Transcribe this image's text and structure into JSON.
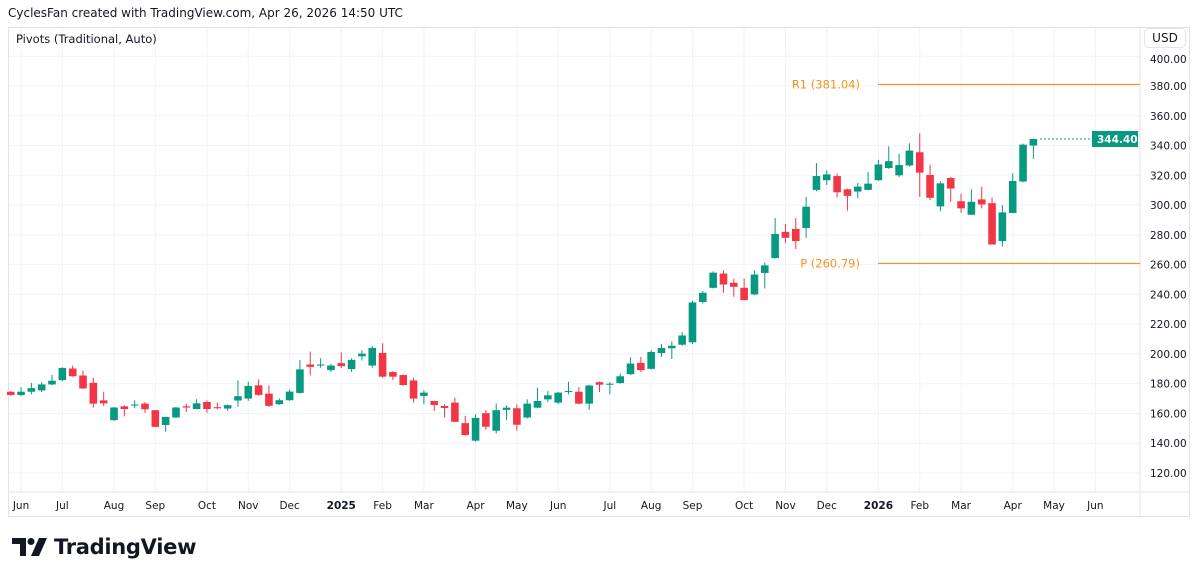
{
  "header": {
    "credit": "CyclesFan created with TradingView.com, Apr 26, 2026 14:50 UTC"
  },
  "indicator": {
    "label": "Pivots (Traditional, Auto)"
  },
  "currency": "USD",
  "branding": {
    "logo_text": "TradingView"
  },
  "colors": {
    "up": "#089981",
    "down": "#f23645",
    "pivot": "#f7931a",
    "grid": "#f0f3fa"
  },
  "chart_data": {
    "type": "candlestick",
    "interval": "weekly",
    "ylim": [
      110,
      400
    ],
    "grid": true,
    "y_ticks": [
      "120.00",
      "140.00",
      "160.00",
      "180.00",
      "200.00",
      "220.00",
      "240.00",
      "260.00",
      "280.00",
      "300.00",
      "320.00",
      "340.00",
      "360.00",
      "380.00",
      "400.00"
    ],
    "x_ticks": [
      {
        "label": "Jun",
        "date": "2024-06-03"
      },
      {
        "label": "Jul",
        "date": "2024-07-01"
      },
      {
        "label": "Aug",
        "date": "2024-08-05"
      },
      {
        "label": "Sep",
        "date": "2024-09-02"
      },
      {
        "label": "Oct",
        "date": "2024-10-07"
      },
      {
        "label": "Nov",
        "date": "2024-11-04"
      },
      {
        "label": "Dec",
        "date": "2024-12-02"
      },
      {
        "label": "2025",
        "date": "2025-01-06"
      },
      {
        "label": "Feb",
        "date": "2025-02-03"
      },
      {
        "label": "Mar",
        "date": "2025-03-03"
      },
      {
        "label": "Apr",
        "date": "2025-04-07"
      },
      {
        "label": "May",
        "date": "2025-05-05"
      },
      {
        "label": "Jun",
        "date": "2025-06-02"
      },
      {
        "label": "Jul",
        "date": "2025-07-07"
      },
      {
        "label": "Aug",
        "date": "2025-08-04"
      },
      {
        "label": "Sep",
        "date": "2025-09-01"
      },
      {
        "label": "Oct",
        "date": "2025-10-06"
      },
      {
        "label": "Nov",
        "date": "2025-11-03"
      },
      {
        "label": "Dec",
        "date": "2025-12-01"
      },
      {
        "label": "2026",
        "date": "2026-01-05"
      },
      {
        "label": "Feb",
        "date": "2026-02-02"
      },
      {
        "label": "Mar",
        "date": "2026-03-02"
      },
      {
        "label": "Apr",
        "date": "2026-04-06"
      },
      {
        "label": "May",
        "date": "2026-05-04"
      },
      {
        "label": "Jun",
        "date": "2026-06-01"
      }
    ],
    "columns": [
      "date",
      "open",
      "high",
      "low",
      "close"
    ],
    "candles": [
      [
        "2024-05-27",
        174.6,
        175.0,
        172.0,
        172.4
      ],
      [
        "2024-06-03",
        172.4,
        177.7,
        171.7,
        174.6
      ],
      [
        "2024-06-10",
        174.6,
        180.6,
        172.8,
        177.0
      ],
      [
        "2024-06-17",
        175.5,
        181.0,
        174.4,
        179.5
      ],
      [
        "2024-06-24",
        179.5,
        186.0,
        179.0,
        182.0
      ],
      [
        "2024-07-01",
        182.4,
        191.0,
        181.7,
        190.6
      ],
      [
        "2024-07-08",
        190.2,
        192.2,
        184.6,
        185.0
      ],
      [
        "2024-07-15",
        185.5,
        188.8,
        176.6,
        176.8
      ],
      [
        "2024-07-22",
        180.6,
        184.0,
        164.0,
        166.6
      ],
      [
        "2024-07-29",
        168.8,
        174.6,
        165.0,
        166.8
      ],
      [
        "2024-08-05",
        155.5,
        164.4,
        155.0,
        164.0
      ],
      [
        "2024-08-12",
        164.8,
        165.5,
        158.0,
        163.0
      ],
      [
        "2024-08-19",
        165.5,
        168.8,
        163.5,
        166.0
      ],
      [
        "2024-08-26",
        166.6,
        167.7,
        160.4,
        162.8
      ],
      [
        "2024-09-02",
        162.2,
        162.2,
        151.0,
        151.0
      ],
      [
        "2024-09-09",
        152.2,
        157.7,
        147.7,
        157.7
      ],
      [
        "2024-09-16",
        157.3,
        164.4,
        157.0,
        164.0
      ],
      [
        "2024-09-23",
        164.8,
        166.6,
        161.0,
        164.0
      ],
      [
        "2024-09-30",
        163.0,
        169.5,
        162.8,
        166.8
      ],
      [
        "2024-10-07",
        167.7,
        168.8,
        160.4,
        163.0
      ],
      [
        "2024-10-14",
        164.2,
        167.3,
        162.8,
        163.5
      ],
      [
        "2024-10-21",
        163.3,
        166.0,
        161.8,
        165.6
      ],
      [
        "2024-10-28",
        168.7,
        182.2,
        164.5,
        171.6
      ],
      [
        "2024-11-04",
        170.0,
        181.3,
        168.5,
        178.5
      ],
      [
        "2024-11-11",
        178.9,
        182.9,
        171.8,
        172.5
      ],
      [
        "2024-11-18",
        173.3,
        178.9,
        164.5,
        165.1
      ],
      [
        "2024-11-25",
        166.2,
        170.2,
        165.8,
        168.9
      ],
      [
        "2024-12-02",
        168.9,
        176.2,
        168.5,
        174.7
      ],
      [
        "2024-12-09",
        173.8,
        196.0,
        173.3,
        189.6
      ],
      [
        "2024-12-16",
        192.9,
        201.6,
        185.6,
        191.3
      ],
      [
        "2024-12-23",
        192.2,
        197.1,
        190.7,
        192.9
      ],
      [
        "2024-12-30",
        189.1,
        193.3,
        188.0,
        192.2
      ],
      [
        "2025-01-06",
        193.8,
        201.1,
        190.5,
        191.8
      ],
      [
        "2025-01-13",
        189.8,
        197.1,
        188.0,
        196.0
      ],
      [
        "2025-01-20",
        198.4,
        202.5,
        195.6,
        200.2
      ],
      [
        "2025-01-27",
        192.2,
        205.3,
        190.7,
        204.0
      ],
      [
        "2025-02-03",
        200.7,
        207.1,
        184.0,
        184.7
      ],
      [
        "2025-02-10",
        187.8,
        188.5,
        182.5,
        184.7
      ],
      [
        "2025-02-17",
        185.8,
        186.2,
        178.7,
        179.1
      ],
      [
        "2025-02-24",
        182.2,
        183.8,
        167.3,
        170.0
      ],
      [
        "2025-03-03",
        171.8,
        175.6,
        166.2,
        174.0
      ],
      [
        "2025-03-10",
        168.4,
        168.4,
        161.7,
        165.7
      ],
      [
        "2025-03-17",
        165.0,
        166.2,
        157.3,
        163.7
      ],
      [
        "2025-03-24",
        167.3,
        170.6,
        154.4,
        154.4
      ],
      [
        "2025-03-31",
        153.5,
        158.4,
        145.1,
        145.5
      ],
      [
        "2025-04-07",
        141.7,
        159.5,
        141.1,
        157.0
      ],
      [
        "2025-04-14",
        160.2,
        162.2,
        149.1,
        151.1
      ],
      [
        "2025-04-21",
        148.4,
        166.6,
        146.6,
        162.2
      ],
      [
        "2025-04-28",
        162.4,
        165.5,
        155.7,
        163.9
      ],
      [
        "2025-05-05",
        163.5,
        166.2,
        148.4,
        152.4
      ],
      [
        "2025-05-12",
        157.3,
        169.5,
        156.6,
        166.6
      ],
      [
        "2025-05-19",
        163.9,
        177.3,
        163.5,
        168.4
      ],
      [
        "2025-05-26",
        169.5,
        175.0,
        167.7,
        172.2
      ],
      [
        "2025-06-02",
        167.3,
        174.4,
        166.2,
        174.0
      ],
      [
        "2025-06-09",
        174.4,
        181.3,
        172.8,
        175.1
      ],
      [
        "2025-06-16",
        174.6,
        177.7,
        166.2,
        166.6
      ],
      [
        "2025-06-23",
        166.6,
        179.3,
        162.4,
        178.8
      ],
      [
        "2025-06-30",
        181.0,
        181.5,
        174.4,
        179.3
      ],
      [
        "2025-07-07",
        179.3,
        181.0,
        172.8,
        180.0
      ],
      [
        "2025-07-14",
        180.4,
        186.8,
        180.0,
        185.0
      ],
      [
        "2025-07-21",
        186.4,
        197.7,
        185.9,
        193.5
      ],
      [
        "2025-07-28",
        194.0,
        198.0,
        187.8,
        189.1
      ],
      [
        "2025-08-04",
        190.0,
        202.5,
        189.5,
        201.3
      ],
      [
        "2025-08-11",
        200.6,
        206.6,
        198.0,
        204.0
      ],
      [
        "2025-08-18",
        203.8,
        208.4,
        196.6,
        205.5
      ],
      [
        "2025-08-25",
        206.2,
        214.6,
        205.5,
        212.4
      ],
      [
        "2025-09-01",
        207.8,
        235.8,
        206.6,
        234.6
      ],
      [
        "2025-09-08",
        234.9,
        242.2,
        233.8,
        241.1
      ],
      [
        "2025-09-15",
        244.4,
        255.5,
        244.0,
        254.6
      ],
      [
        "2025-09-22",
        254.0,
        256.2,
        241.1,
        246.6
      ],
      [
        "2025-09-29",
        247.8,
        250.6,
        238.4,
        245.1
      ],
      [
        "2025-10-06",
        244.4,
        250.6,
        235.8,
        236.2
      ],
      [
        "2025-10-13",
        240.0,
        256.2,
        239.5,
        253.3
      ],
      [
        "2025-10-20",
        254.4,
        261.3,
        244.0,
        259.5
      ],
      [
        "2025-10-27",
        264.4,
        291.3,
        264.0,
        280.6
      ],
      [
        "2025-11-03",
        282.0,
        287.3,
        274.4,
        278.0
      ],
      [
        "2025-11-10",
        284.0,
        291.3,
        270.4,
        275.8
      ],
      [
        "2025-11-17",
        284.6,
        305.5,
        278.0,
        298.9
      ],
      [
        "2025-11-24",
        310.2,
        328.2,
        309.3,
        319.5
      ],
      [
        "2025-12-01",
        316.7,
        323.3,
        313.5,
        320.6
      ],
      [
        "2025-12-08",
        319.5,
        321.1,
        305.1,
        308.6
      ],
      [
        "2025-12-15",
        310.6,
        311.1,
        296.2,
        306.2
      ],
      [
        "2025-12-22",
        309.1,
        314.9,
        304.6,
        312.4
      ],
      [
        "2025-12-29",
        310.2,
        322.2,
        310.0,
        314.4
      ],
      [
        "2026-01-05",
        316.7,
        330.4,
        316.2,
        327.3
      ],
      [
        "2026-01-12",
        324.9,
        339.5,
        324.4,
        329.5
      ],
      [
        "2026-01-19",
        320.0,
        334.4,
        318.9,
        326.9
      ],
      [
        "2026-01-26",
        326.6,
        341.5,
        325.8,
        336.6
      ],
      [
        "2026-02-02",
        335.5,
        348.2,
        305.5,
        321.8
      ],
      [
        "2026-02-09",
        320.2,
        327.1,
        303.3,
        304.9
      ],
      [
        "2026-02-16",
        299.1,
        316.0,
        295.8,
        314.6
      ],
      [
        "2026-02-23",
        318.2,
        318.9,
        302.2,
        311.1
      ],
      [
        "2026-03-02",
        302.6,
        307.8,
        294.7,
        297.8
      ],
      [
        "2026-03-09",
        293.5,
        310.6,
        293.3,
        302.2
      ],
      [
        "2026-03-16",
        303.8,
        312.2,
        297.8,
        300.4
      ],
      [
        "2026-03-23",
        301.3,
        305.1,
        273.5,
        273.5
      ],
      [
        "2026-03-30",
        275.8,
        300.0,
        272.2,
        295.1
      ],
      [
        "2026-04-06",
        294.7,
        321.3,
        294.6,
        316.2
      ],
      [
        "2026-04-13",
        315.8,
        341.3,
        315.3,
        340.6
      ],
      [
        "2026-04-20",
        340.0,
        344.7,
        331.1,
        344.4
      ]
    ],
    "last_price": "344.40",
    "pivots": [
      {
        "name": "R1",
        "value": 381.04,
        "label": "R1 (381.04)"
      },
      {
        "name": "P",
        "value": 260.79,
        "label": "P (260.79)"
      }
    ]
  }
}
